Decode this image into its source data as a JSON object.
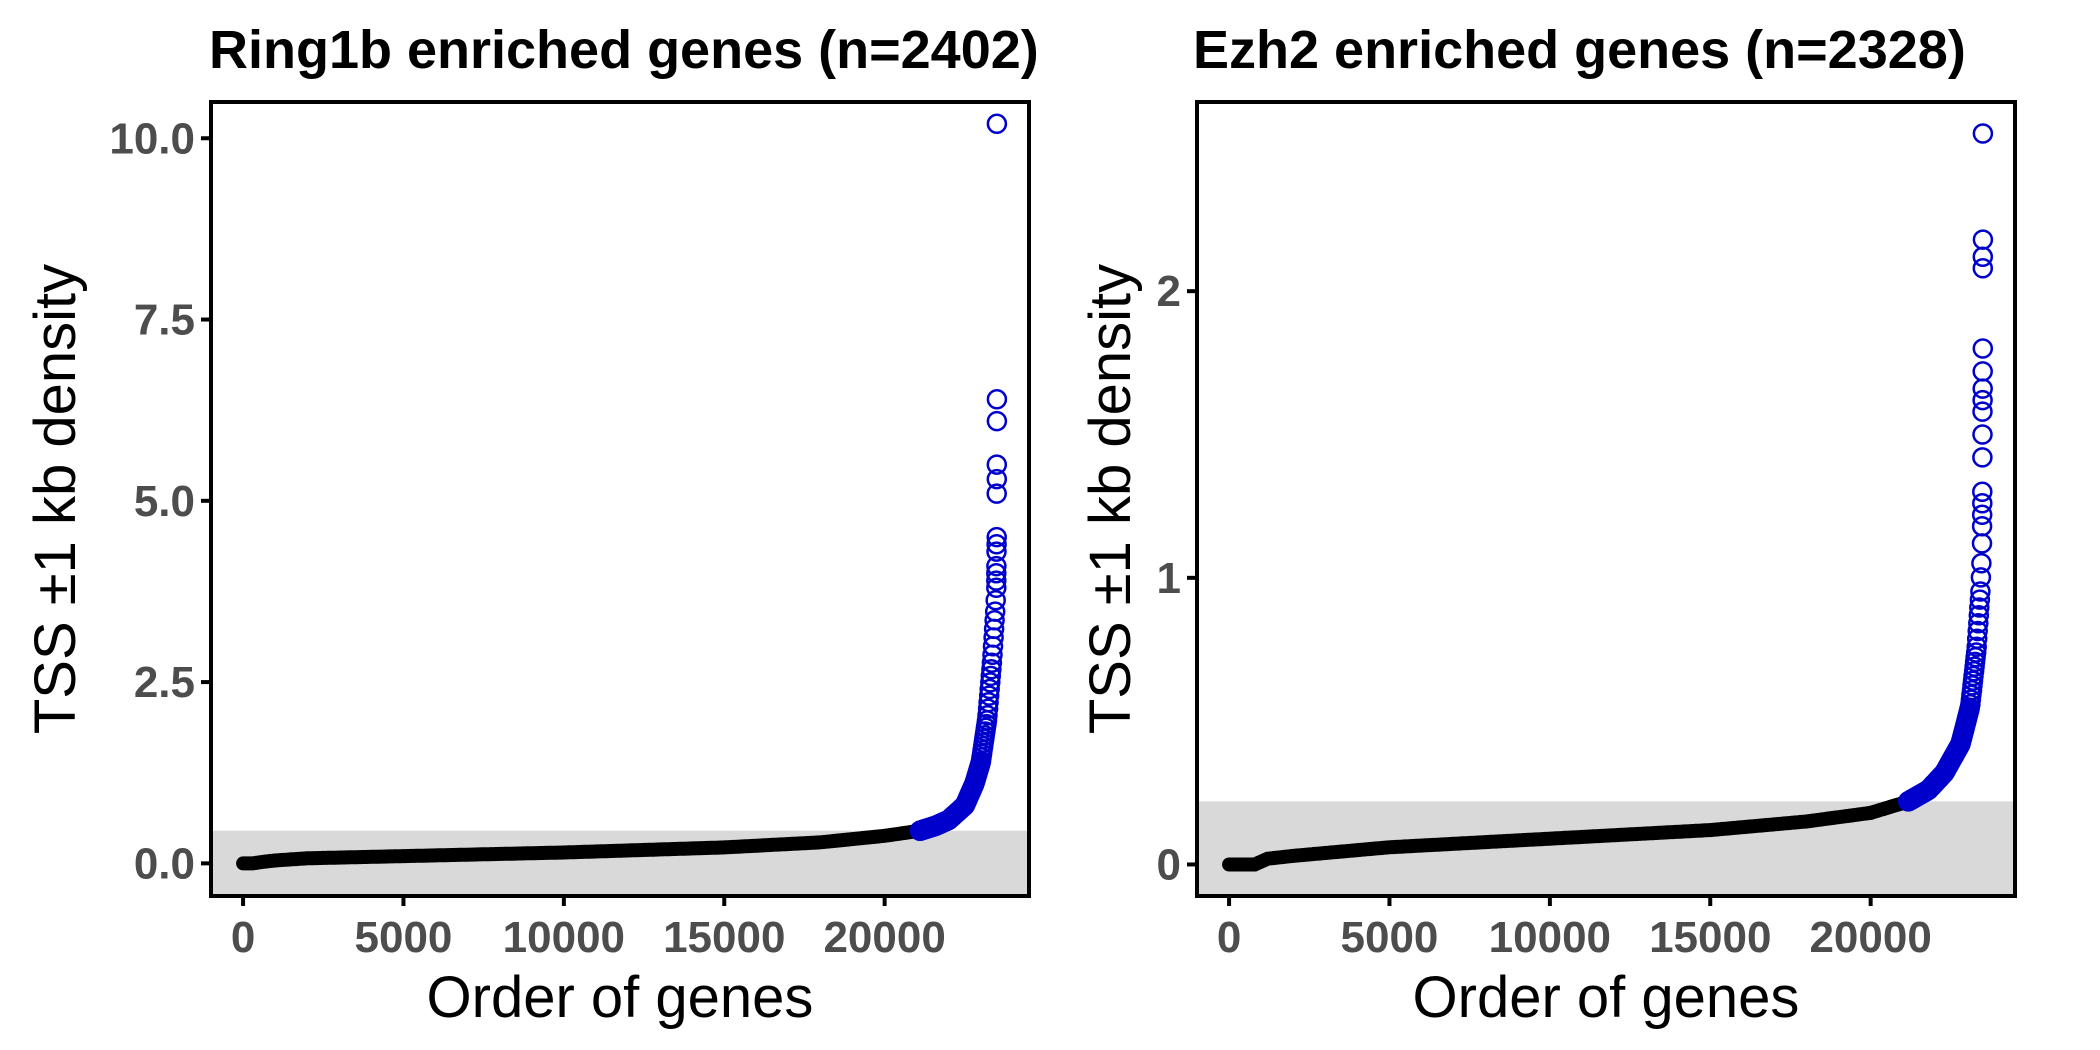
{
  "colors": {
    "enriched": "#0000cc",
    "background_genes": "#000000",
    "threshold_band": "#d9d9d9"
  },
  "chart_data": [
    {
      "type": "scatter",
      "title": "Ring1b enriched genes (n=2402)",
      "xlabel": "Order of genes",
      "ylabel": "TSS ±1 kb density",
      "xlim": [
        -1000,
        24500
      ],
      "ylim": [
        -0.45,
        10.5
      ],
      "x_ticks": [
        0,
        5000,
        10000,
        15000,
        20000
      ],
      "y_ticks": [
        0.0,
        2.5,
        5.0,
        7.5,
        10.0
      ],
      "x_tick_labels": [
        "0",
        "5000",
        "10000",
        "15000",
        "20000"
      ],
      "y_tick_labels": [
        "0.0",
        "2.5",
        "5.0",
        "7.5",
        "10.0"
      ],
      "threshold": 0.45,
      "total_genes": 23500,
      "n_enriched": 2402,
      "background_curve": [
        [
          0,
          0.0
        ],
        [
          300,
          0.0
        ],
        [
          600,
          0.02
        ],
        [
          1000,
          0.04
        ],
        [
          2000,
          0.07
        ],
        [
          5000,
          0.1
        ],
        [
          10000,
          0.15
        ],
        [
          15000,
          0.22
        ],
        [
          18000,
          0.29
        ],
        [
          20000,
          0.38
        ],
        [
          21098,
          0.45
        ]
      ],
      "enriched_curve": [
        [
          21098,
          0.45
        ],
        [
          21600,
          0.52
        ],
        [
          22000,
          0.6
        ],
        [
          22500,
          0.8
        ],
        [
          22800,
          1.1
        ],
        [
          23000,
          1.4
        ],
        [
          23200,
          2.0
        ],
        [
          23350,
          2.8
        ],
        [
          23450,
          3.5
        ],
        [
          23480,
          3.8
        ]
      ],
      "enriched_outliers": [
        [
          23480,
          3.9
        ],
        [
          23482,
          4.0
        ],
        [
          23485,
          4.1
        ],
        [
          23487,
          4.3
        ],
        [
          23490,
          4.4
        ],
        [
          23492,
          4.5
        ],
        [
          23494,
          5.1
        ],
        [
          23496,
          5.3
        ],
        [
          23497,
          5.5
        ],
        [
          23498,
          6.1
        ],
        [
          23499,
          6.4
        ],
        [
          23500,
          10.2
        ]
      ]
    },
    {
      "type": "scatter",
      "title": "Ezh2 enriched genes (n=2328)",
      "xlabel": "Order of genes",
      "ylabel": "TSS ±1 kb density",
      "xlim": [
        -1000,
        24500
      ],
      "ylim": [
        -0.11,
        2.66
      ],
      "x_ticks": [
        0,
        5000,
        10000,
        15000,
        20000
      ],
      "y_ticks": [
        0,
        1,
        2
      ],
      "x_tick_labels": [
        "0",
        "5000",
        "10000",
        "15000",
        "20000"
      ],
      "y_tick_labels": [
        "0",
        "1",
        "2"
      ],
      "threshold": 0.22,
      "total_genes": 23500,
      "n_enriched": 2328,
      "background_curve": [
        [
          0,
          0.0
        ],
        [
          800,
          0.0
        ],
        [
          1200,
          0.02
        ],
        [
          2000,
          0.03
        ],
        [
          5000,
          0.06
        ],
        [
          10000,
          0.09
        ],
        [
          15000,
          0.12
        ],
        [
          18000,
          0.15
        ],
        [
          20000,
          0.18
        ],
        [
          21172,
          0.22
        ]
      ],
      "enriched_curve": [
        [
          21172,
          0.22
        ],
        [
          21800,
          0.26
        ],
        [
          22300,
          0.32
        ],
        [
          22800,
          0.42
        ],
        [
          23100,
          0.55
        ],
        [
          23300,
          0.75
        ],
        [
          23420,
          0.95
        ],
        [
          23470,
          1.1
        ]
      ],
      "enriched_outliers": [
        [
          23470,
          1.12
        ],
        [
          23475,
          1.18
        ],
        [
          23478,
          1.22
        ],
        [
          23480,
          1.26
        ],
        [
          23482,
          1.3
        ],
        [
          23484,
          1.42
        ],
        [
          23486,
          1.5
        ],
        [
          23488,
          1.58
        ],
        [
          23490,
          1.62
        ],
        [
          23492,
          1.66
        ],
        [
          23494,
          1.72
        ],
        [
          23495,
          1.8
        ],
        [
          23496,
          2.08
        ],
        [
          23497,
          2.12
        ],
        [
          23498,
          2.18
        ],
        [
          23500,
          2.55
        ]
      ]
    }
  ]
}
